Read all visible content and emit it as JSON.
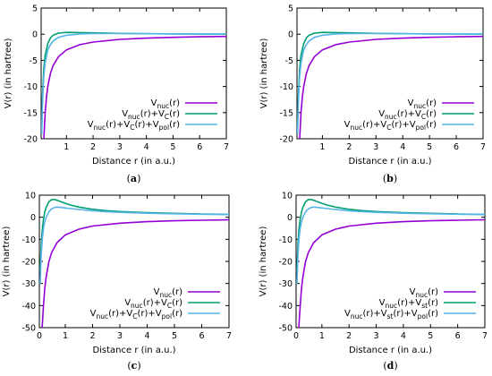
{
  "figure": {
    "captions": [
      "(a)",
      "(b)",
      "(c)",
      "(d)"
    ]
  },
  "colors": {
    "purple": "#9400d3",
    "green": "#009e73",
    "cyan": "#56b4e9"
  },
  "chart_data": [
    {
      "type": "line",
      "caption": "(a)",
      "xlabel": "Distance r (in a.u.)",
      "ylabel": "V(r) (in hartree)",
      "xlim": [
        0.05,
        7
      ],
      "ylim": [
        -20,
        5
      ],
      "xticks": [
        1,
        2,
        3,
        4,
        5,
        6,
        7
      ],
      "yticks": [
        -20,
        -15,
        -10,
        -5,
        0,
        5
      ],
      "legend_position": "bottom-right",
      "series": [
        {
          "name": "Vnuc(r)",
          "name_parts": [
            [
              "V",
              ""
            ],
            [
              "nuc",
              "sub"
            ],
            [
              "(r)",
              ""
            ]
          ],
          "color": "#9400d3",
          "x": [
            0.15,
            0.2,
            0.25,
            0.3,
            0.4,
            0.5,
            0.7,
            1.0,
            1.5,
            2.0,
            3.0,
            4.0,
            5.0,
            6.0,
            7.0
          ],
          "y": [
            -20,
            -15,
            -12,
            -10,
            -7.5,
            -6,
            -4.3,
            -3,
            -2,
            -1.5,
            -1,
            -0.75,
            -0.6,
            -0.5,
            -0.43
          ]
        },
        {
          "name": "Vnuc(r)+VC(r)",
          "name_parts": [
            [
              "V",
              ""
            ],
            [
              "nuc",
              "sub"
            ],
            [
              "(r)+V",
              ""
            ],
            [
              "C",
              "sub"
            ],
            [
              "(r)",
              ""
            ]
          ],
          "color": "#009e73",
          "x": [
            0.07,
            0.1,
            0.15,
            0.2,
            0.3,
            0.4,
            0.5,
            0.7,
            1.0,
            1.5,
            2.0,
            3.0,
            5.0,
            7.0
          ],
          "y": [
            -19,
            -12,
            -6.5,
            -4,
            -1.8,
            -0.7,
            -0.2,
            0.2,
            0.35,
            0.3,
            0.25,
            0.15,
            0.05,
            0.02
          ]
        },
        {
          "name": "Vnuc(r)+VC(r)+Vpol(r)",
          "name_parts": [
            [
              "V",
              ""
            ],
            [
              "nuc",
              "sub"
            ],
            [
              "(r)+V",
              ""
            ],
            [
              "C",
              "sub"
            ],
            [
              "(r)+V",
              ""
            ],
            [
              "pol",
              "sub"
            ],
            [
              "(r)",
              ""
            ]
          ],
          "color": "#56b4e9",
          "x": [
            0.07,
            0.1,
            0.15,
            0.2,
            0.3,
            0.4,
            0.5,
            0.7,
            1.0,
            1.5,
            2.0,
            3.0,
            5.0,
            7.0
          ],
          "y": [
            -19,
            -13,
            -8,
            -5.5,
            -3,
            -2,
            -1.3,
            -0.6,
            -0.2,
            0.05,
            0.12,
            0.12,
            0.07,
            0.04
          ]
        }
      ]
    },
    {
      "type": "line",
      "caption": "(b)",
      "xlabel": "Distance r (in a.u.)",
      "ylabel": "V(r) (in hartree)",
      "xlim": [
        0.05,
        7
      ],
      "ylim": [
        -20,
        5
      ],
      "xticks": [
        1,
        2,
        3,
        4,
        5,
        6,
        7
      ],
      "yticks": [
        -20,
        -15,
        -10,
        -5,
        0,
        5
      ],
      "legend_position": "bottom-right",
      "series": [
        {
          "name": "Vnuc(r)",
          "name_parts": [
            [
              "V",
              ""
            ],
            [
              "nuc",
              "sub"
            ],
            [
              "(r)",
              ""
            ]
          ],
          "color": "#9400d3",
          "x": [
            0.15,
            0.2,
            0.25,
            0.3,
            0.4,
            0.5,
            0.7,
            1.0,
            1.5,
            2.0,
            3.0,
            4.0,
            5.0,
            6.0,
            7.0
          ],
          "y": [
            -20,
            -15,
            -12,
            -10,
            -7.5,
            -6,
            -4.3,
            -3,
            -2,
            -1.5,
            -1,
            -0.75,
            -0.6,
            -0.5,
            -0.43
          ]
        },
        {
          "name": "Vnuc(r)+VC(r)",
          "name_parts": [
            [
              "V",
              ""
            ],
            [
              "nuc",
              "sub"
            ],
            [
              "(r)+V",
              ""
            ],
            [
              "C",
              "sub"
            ],
            [
              "(r)",
              ""
            ]
          ],
          "color": "#009e73",
          "x": [
            0.07,
            0.1,
            0.15,
            0.2,
            0.3,
            0.4,
            0.5,
            0.7,
            1.0,
            1.5,
            2.0,
            3.0,
            5.0,
            7.0
          ],
          "y": [
            -19,
            -12,
            -6.5,
            -4,
            -1.8,
            -0.7,
            -0.2,
            0.2,
            0.35,
            0.3,
            0.25,
            0.15,
            0.05,
            0.02
          ]
        },
        {
          "name": "Vnuc(r)+VC(r)+Vpol(r)",
          "name_parts": [
            [
              "V",
              ""
            ],
            [
              "nuc",
              "sub"
            ],
            [
              "(r)+V",
              ""
            ],
            [
              "C",
              "sub"
            ],
            [
              "(r)+V",
              ""
            ],
            [
              "pol",
              "sub"
            ],
            [
              "(r)",
              ""
            ]
          ],
          "color": "#56b4e9",
          "x": [
            0.07,
            0.1,
            0.15,
            0.2,
            0.3,
            0.4,
            0.5,
            0.7,
            1.0,
            1.5,
            2.0,
            3.0,
            5.0,
            7.0
          ],
          "y": [
            -19,
            -13,
            -8,
            -5.5,
            -3,
            -2,
            -1.3,
            -0.6,
            -0.2,
            0.05,
            0.12,
            0.12,
            0.07,
            0.04
          ]
        }
      ]
    },
    {
      "type": "line",
      "caption": "(c)",
      "xlabel": "Distance r (in a.u.)",
      "ylabel": "V(r) (in hartree)",
      "xlim": [
        0.05,
        7
      ],
      "ylim": [
        -50,
        10
      ],
      "xticks": [
        0,
        1,
        2,
        3,
        4,
        5,
        6,
        7
      ],
      "yticks": [
        -50,
        -40,
        -30,
        -20,
        -10,
        0,
        10
      ],
      "legend_position": "bottom-right",
      "series": [
        {
          "name": "Vnuc(r)",
          "name_parts": [
            [
              "V",
              ""
            ],
            [
              "nuc",
              "sub"
            ],
            [
              "(r)",
              ""
            ]
          ],
          "color": "#9400d3",
          "x": [
            0.15,
            0.2,
            0.25,
            0.3,
            0.4,
            0.5,
            0.7,
            1.0,
            1.5,
            2.0,
            3.0,
            4.0,
            5.0,
            6.0,
            7.0
          ],
          "y": [
            -50,
            -40,
            -32,
            -27,
            -20,
            -16,
            -11.5,
            -8,
            -5.4,
            -4,
            -2.7,
            -2,
            -1.6,
            -1.35,
            -1.15
          ]
        },
        {
          "name": "Vnuc(r)+VC(r)",
          "name_parts": [
            [
              "V",
              ""
            ],
            [
              "nuc",
              "sub"
            ],
            [
              "(r)+V",
              ""
            ],
            [
              "C",
              "sub"
            ],
            [
              "(r)",
              ""
            ]
          ],
          "color": "#009e73",
          "x": [
            0.08,
            0.12,
            0.16,
            0.2,
            0.25,
            0.3,
            0.4,
            0.5,
            0.6,
            0.7,
            0.8,
            1.0,
            1.2,
            1.5,
            2.0,
            2.5,
            3.0,
            4.0,
            5.0,
            6.0,
            7.0
          ],
          "y": [
            -24,
            -12,
            -5,
            -1,
            2.5,
            4.5,
            7,
            8,
            8,
            7.7,
            7.2,
            6.3,
            5.5,
            4.6,
            3.6,
            3,
            2.6,
            2.1,
            1.75,
            1.5,
            1.3
          ]
        },
        {
          "name": "Vnuc(r)+VC(r)+Vpol(r)",
          "name_parts": [
            [
              "V",
              ""
            ],
            [
              "nuc",
              "sub"
            ],
            [
              "(r)+V",
              ""
            ],
            [
              "C",
              "sub"
            ],
            [
              "(r)+V",
              ""
            ],
            [
              "pol",
              "sub"
            ],
            [
              "(r)",
              ""
            ]
          ],
          "color": "#56b4e9",
          "x": [
            0.08,
            0.12,
            0.16,
            0.2,
            0.25,
            0.3,
            0.4,
            0.5,
            0.6,
            0.7,
            0.8,
            1.0,
            1.2,
            1.5,
            2.0,
            2.5,
            3.0,
            4.0,
            5.0,
            6.0,
            7.0
          ],
          "y": [
            -30,
            -17,
            -9.5,
            -5,
            -2,
            0,
            2.5,
            3.8,
            4.4,
            4.6,
            4.5,
            4.2,
            3.9,
            3.5,
            2.9,
            2.5,
            2.2,
            1.8,
            1.55,
            1.35,
            1.2
          ]
        }
      ]
    },
    {
      "type": "line",
      "caption": "(d)",
      "xlabel": "Distance r (in a.u.)",
      "ylabel": "V(r) (in hartree)",
      "xlim": [
        0.05,
        7
      ],
      "ylim": [
        -50,
        10
      ],
      "xticks": [
        0,
        1,
        2,
        3,
        4,
        5,
        6,
        7
      ],
      "yticks": [
        -50,
        -40,
        -30,
        -20,
        -10,
        0,
        10
      ],
      "legend_position": "bottom-right",
      "series": [
        {
          "name": "Vnuc(r)",
          "name_parts": [
            [
              "V",
              ""
            ],
            [
              "nuc",
              "sub"
            ],
            [
              "(r)",
              ""
            ]
          ],
          "color": "#9400d3",
          "x": [
            0.15,
            0.2,
            0.25,
            0.3,
            0.4,
            0.5,
            0.7,
            1.0,
            1.5,
            2.0,
            3.0,
            4.0,
            5.0,
            6.0,
            7.0
          ],
          "y": [
            -50,
            -40,
            -32,
            -27,
            -20,
            -16,
            -11.5,
            -8,
            -5.4,
            -4,
            -2.7,
            -2,
            -1.6,
            -1.35,
            -1.15
          ]
        },
        {
          "name": "Vnuc(r)+Vst(r)",
          "name_parts": [
            [
              "V",
              ""
            ],
            [
              "nuc",
              "sub"
            ],
            [
              "(r)+V",
              ""
            ],
            [
              "st",
              "sub"
            ],
            [
              "(r)",
              ""
            ]
          ],
          "color": "#009e73",
          "x": [
            0.08,
            0.12,
            0.16,
            0.2,
            0.25,
            0.3,
            0.4,
            0.5,
            0.6,
            0.7,
            0.8,
            1.0,
            1.2,
            1.5,
            2.0,
            2.5,
            3.0,
            4.0,
            5.0,
            6.0,
            7.0
          ],
          "y": [
            -24,
            -12,
            -5,
            -1,
            2.5,
            4.5,
            7,
            8,
            8,
            7.7,
            7.2,
            6.3,
            5.5,
            4.6,
            3.6,
            3,
            2.6,
            2.1,
            1.75,
            1.5,
            1.3
          ]
        },
        {
          "name": "Vnuc(r)+Vst(r)+Vpol(r)",
          "name_parts": [
            [
              "V",
              ""
            ],
            [
              "nuc",
              "sub"
            ],
            [
              "(r)+V",
              ""
            ],
            [
              "st",
              "sub"
            ],
            [
              "(r)+V",
              ""
            ],
            [
              "pol",
              "sub"
            ],
            [
              "(r)",
              ""
            ]
          ],
          "color": "#56b4e9",
          "x": [
            0.08,
            0.12,
            0.16,
            0.2,
            0.25,
            0.3,
            0.4,
            0.5,
            0.6,
            0.7,
            0.8,
            1.0,
            1.2,
            1.5,
            2.0,
            2.5,
            3.0,
            4.0,
            5.0,
            6.0,
            7.0
          ],
          "y": [
            -30,
            -17,
            -9.5,
            -5,
            -2,
            0,
            2.5,
            3.8,
            4.4,
            4.6,
            4.5,
            4.2,
            3.9,
            3.5,
            2.9,
            2.5,
            2.2,
            1.8,
            1.55,
            1.35,
            1.2
          ]
        }
      ]
    }
  ]
}
